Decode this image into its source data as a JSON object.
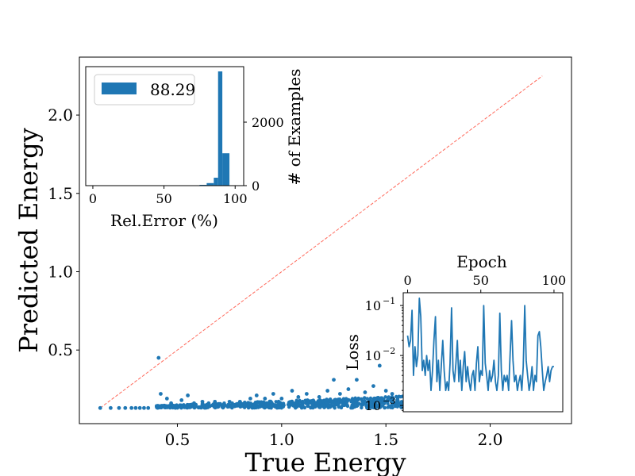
{
  "chart_data": [
    {
      "type": "scatter",
      "xlabel": "True Energy",
      "ylabel": "Predicted Energy",
      "xlim": [
        0.03,
        2.39
      ],
      "ylim": [
        0.03,
        2.37
      ],
      "xticks": [
        0.5,
        1.0,
        1.5,
        2.0
      ],
      "yticks": [
        0.5,
        1.0,
        1.5,
        2.0
      ],
      "xtick_labels": [
        "0.5",
        "1.0",
        "1.5",
        "2.0"
      ],
      "ytick_labels": [
        "0.5",
        "1.0",
        "1.5",
        "2.0"
      ],
      "series_color": "#1f77b4",
      "reference_line": {
        "from": [
          0.13,
          0.13
        ],
        "to": [
          2.25,
          2.25
        ],
        "color": "#ff6a5c",
        "style": "dashed"
      },
      "points": [
        [
          0.13,
          0.13
        ],
        [
          0.18,
          0.13
        ],
        [
          0.22,
          0.13
        ],
        [
          0.25,
          0.13
        ],
        [
          0.28,
          0.13
        ],
        [
          0.3,
          0.13
        ],
        [
          0.32,
          0.13
        ],
        [
          0.34,
          0.13
        ],
        [
          0.36,
          0.13
        ],
        [
          0.41,
          0.45
        ],
        [
          0.42,
          0.22
        ],
        [
          0.45,
          0.19
        ],
        [
          0.47,
          0.16
        ],
        [
          0.52,
          0.18
        ],
        [
          0.55,
          0.21
        ],
        [
          0.58,
          0.16
        ],
        [
          0.62,
          0.17
        ],
        [
          0.65,
          0.16
        ],
        [
          0.68,
          0.17
        ],
        [
          0.72,
          0.15
        ],
        [
          0.75,
          0.17
        ],
        [
          0.8,
          0.17
        ],
        [
          0.85,
          0.19
        ],
        [
          0.88,
          0.21
        ],
        [
          0.92,
          0.19
        ],
        [
          0.96,
          0.22
        ],
        [
          1.0,
          0.19
        ],
        [
          1.05,
          0.24
        ],
        [
          1.08,
          0.2
        ],
        [
          1.12,
          0.22
        ],
        [
          1.18,
          0.2
        ],
        [
          1.22,
          0.24
        ],
        [
          1.25,
          0.31
        ],
        [
          1.28,
          0.22
        ],
        [
          1.32,
          0.25
        ],
        [
          1.36,
          0.31
        ],
        [
          1.4,
          0.23
        ],
        [
          1.44,
          0.27
        ],
        [
          1.47,
          0.4
        ],
        [
          1.5,
          0.24
        ],
        [
          1.53,
          0.22
        ]
      ],
      "dense_band": {
        "x_range": [
          0.4,
          1.58
        ],
        "y": 0.13,
        "spread": 0.025
      },
      "insets": [
        {
          "type": "bar",
          "legend": [
            "88.29"
          ],
          "xlabel": "Rel.Error (%)",
          "ylabel": "# of Examples",
          "xlim": [
            -5,
            106
          ],
          "ylim": [
            0,
            3750
          ],
          "xticks": [
            0,
            50,
            100
          ],
          "yticks": [
            0,
            2000
          ],
          "xtick_labels": [
            "0",
            "50",
            "100"
          ],
          "ytick_labels": [
            "0",
            "2000"
          ],
          "bins": [
            {
              "x0": 70,
              "x1": 75,
              "value": 10
            },
            {
              "x0": 75,
              "x1": 80,
              "value": 25
            },
            {
              "x0": 80,
              "x1": 85,
              "value": 80
            },
            {
              "x0": 85,
              "x1": 88,
              "value": 250
            },
            {
              "x0": 88,
              "x1": 91,
              "value": 3600
            },
            {
              "x0": 91,
              "x1": 96,
              "value": 1020
            }
          ]
        },
        {
          "type": "line",
          "xlabel": "Epoch",
          "ylabel": "Loss",
          "yscale": "log",
          "xlim": [
            -3,
            106
          ],
          "ylim": [
            0.00075,
            0.18
          ],
          "xticks": [
            0,
            50,
            100
          ],
          "xtick_labels": [
            "0",
            "50",
            "100"
          ],
          "yticks": [
            0.001,
            0.01,
            0.1
          ],
          "ytick_labels": [
            "10",
            "10",
            "10"
          ],
          "ytick_exponents": [
            "−3",
            "−2",
            "−1"
          ],
          "x": [
            0,
            1,
            2,
            3,
            4,
            5,
            6,
            7,
            8,
            9,
            10,
            11,
            12,
            13,
            14,
            15,
            16,
            17,
            18,
            19,
            20,
            21,
            22,
            23,
            24,
            25,
            26,
            27,
            28,
            29,
            30,
            31,
            32,
            33,
            34,
            35,
            36,
            37,
            38,
            39,
            40,
            41,
            42,
            43,
            44,
            45,
            46,
            47,
            48,
            49,
            50,
            51,
            52,
            53,
            54,
            55,
            56,
            57,
            58,
            59,
            60,
            61,
            62,
            63,
            64,
            65,
            66,
            67,
            68,
            69,
            70,
            71,
            72,
            73,
            74,
            75,
            76,
            77,
            78,
            79,
            80,
            81,
            82,
            83,
            84,
            85,
            86,
            87,
            88,
            89,
            90,
            91,
            92,
            93,
            94,
            95,
            96,
            97,
            98,
            99,
            100
          ],
          "y": [
            0.025,
            0.015,
            0.02,
            0.08,
            0.004,
            0.015,
            0.006,
            0.01,
            0.14,
            0.06,
            0.005,
            0.008,
            0.004,
            0.01,
            0.005,
            0.008,
            0.002,
            0.005,
            0.02,
            0.06,
            0.003,
            0.008,
            0.002,
            0.006,
            0.02,
            0.005,
            0.002,
            0.003,
            0.002,
            0.007,
            0.09,
            0.005,
            0.003,
            0.007,
            0.02,
            0.003,
            0.008,
            0.002,
            0.006,
            0.012,
            0.003,
            0.006,
            0.003,
            0.002,
            0.004,
            0.005,
            0.002,
            0.007,
            0.015,
            0.003,
            0.005,
            0.004,
            0.1,
            0.007,
            0.004,
            0.002,
            0.005,
            0.003,
            0.004,
            0.008,
            0.003,
            0.002,
            0.004,
            0.07,
            0.005,
            0.002,
            0.004,
            0.003,
            0.004,
            0.002,
            0.01,
            0.05,
            0.008,
            0.003,
            0.004,
            0.002,
            0.003,
            0.004,
            0.002,
            0.006,
            0.1,
            0.008,
            0.004,
            0.002,
            0.003,
            0.006,
            0.002,
            0.004,
            0.003,
            0.025,
            0.03,
            0.015,
            0.005,
            0.002,
            0.003,
            0.004,
            0.006,
            0.003,
            0.005,
            0.006,
            0.006
          ]
        }
      ]
    }
  ]
}
